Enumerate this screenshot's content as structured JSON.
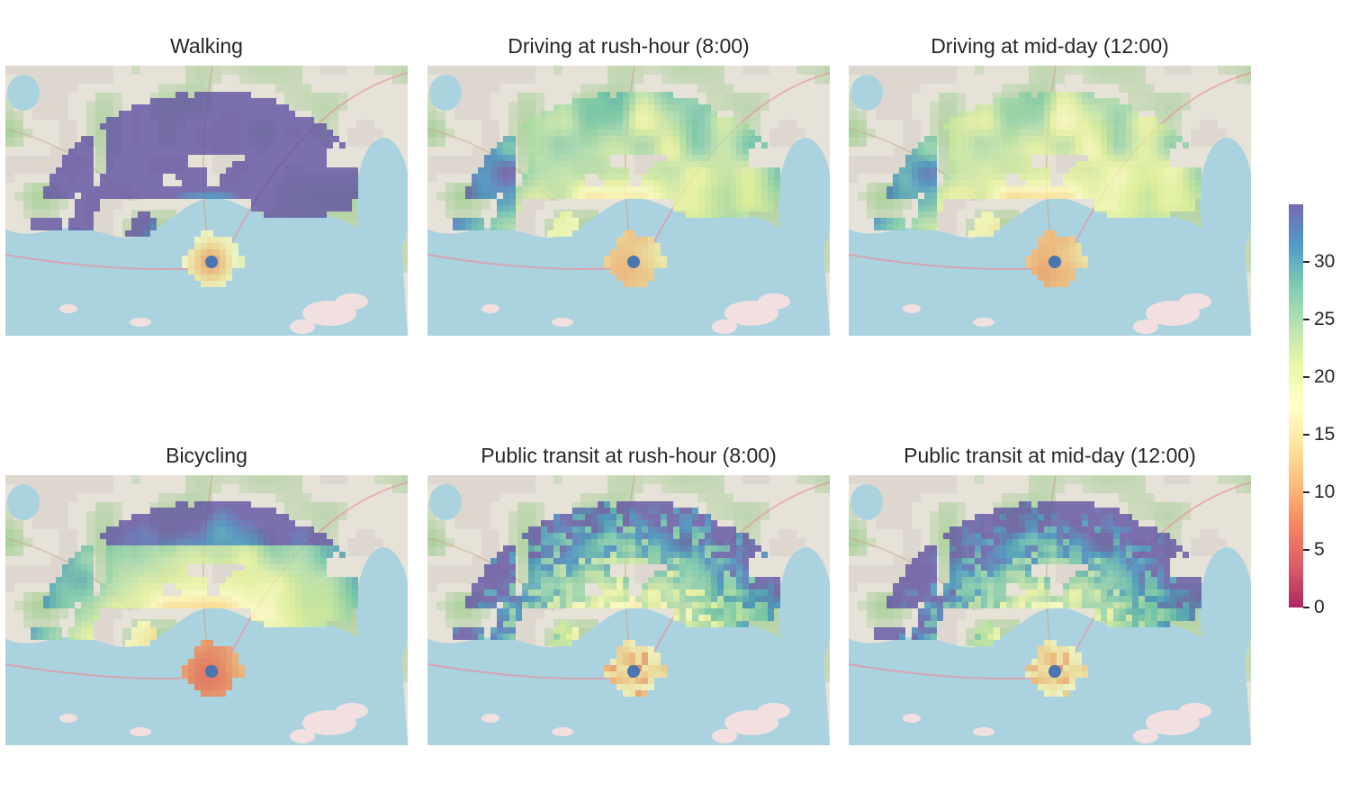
{
  "panels": [
    {
      "title": "Walking",
      "mode": "walk"
    },
    {
      "title": "Driving at rush-hour (8:00)",
      "mode": "drive_rush"
    },
    {
      "title": "Driving at mid-day (12:00)",
      "mode": "drive_mid"
    },
    {
      "title": "Bicycling",
      "mode": "bike"
    },
    {
      "title": "Public transit at rush-hour (8:00)",
      "mode": "transit_rush"
    },
    {
      "title": "Public transit at mid-day (12:00)",
      "mode": "transit_mid"
    }
  ],
  "colorbar": {
    "min": 0,
    "max": 35,
    "ticks": [
      "0",
      "5",
      "10",
      "15",
      "20",
      "25",
      "30"
    ],
    "colormap": "Spectral"
  },
  "colors": {
    "water": "#aad3df",
    "land": "#e6e2d8",
    "green": "#add19e",
    "origin_marker": "#4a75b0",
    "text": "#262626"
  },
  "icons": {
    "origin": "origin-point-icon",
    "basemap": "street-map-background"
  }
}
